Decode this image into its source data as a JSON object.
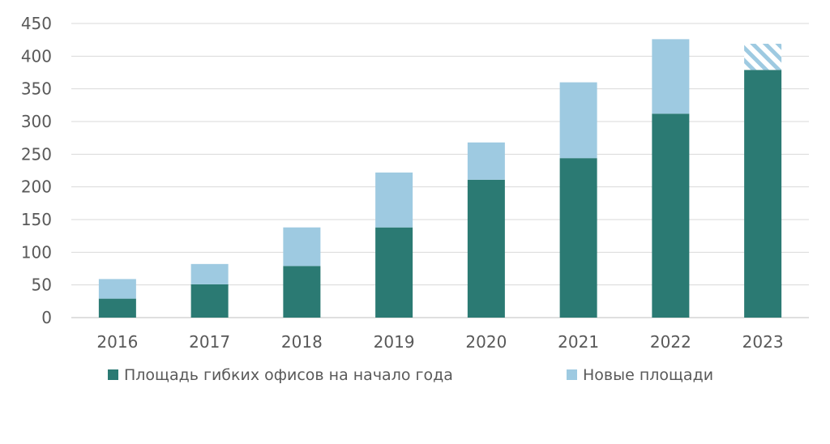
{
  "chart_data": {
    "type": "bar",
    "stacked": true,
    "categories": [
      "2016",
      "2017",
      "2018",
      "2019",
      "2020",
      "2021",
      "2022",
      "2023"
    ],
    "series": [
      {
        "name": "Площадь гибких офисов на начало года",
        "color": "#2b7a73",
        "values": [
          29,
          51,
          79,
          138,
          211,
          244,
          312,
          379
        ]
      },
      {
        "name": "Новые площади",
        "color": "#9ecae1",
        "values": [
          30,
          31,
          59,
          84,
          57,
          116,
          114,
          40
        ],
        "hatched_categories": [
          "2023"
        ]
      }
    ],
    "ylim": [
      0,
      450
    ],
    "yticks": [
      0,
      50,
      100,
      150,
      200,
      250,
      300,
      350,
      400,
      450
    ],
    "grid": true,
    "legend_position": "bottom"
  }
}
